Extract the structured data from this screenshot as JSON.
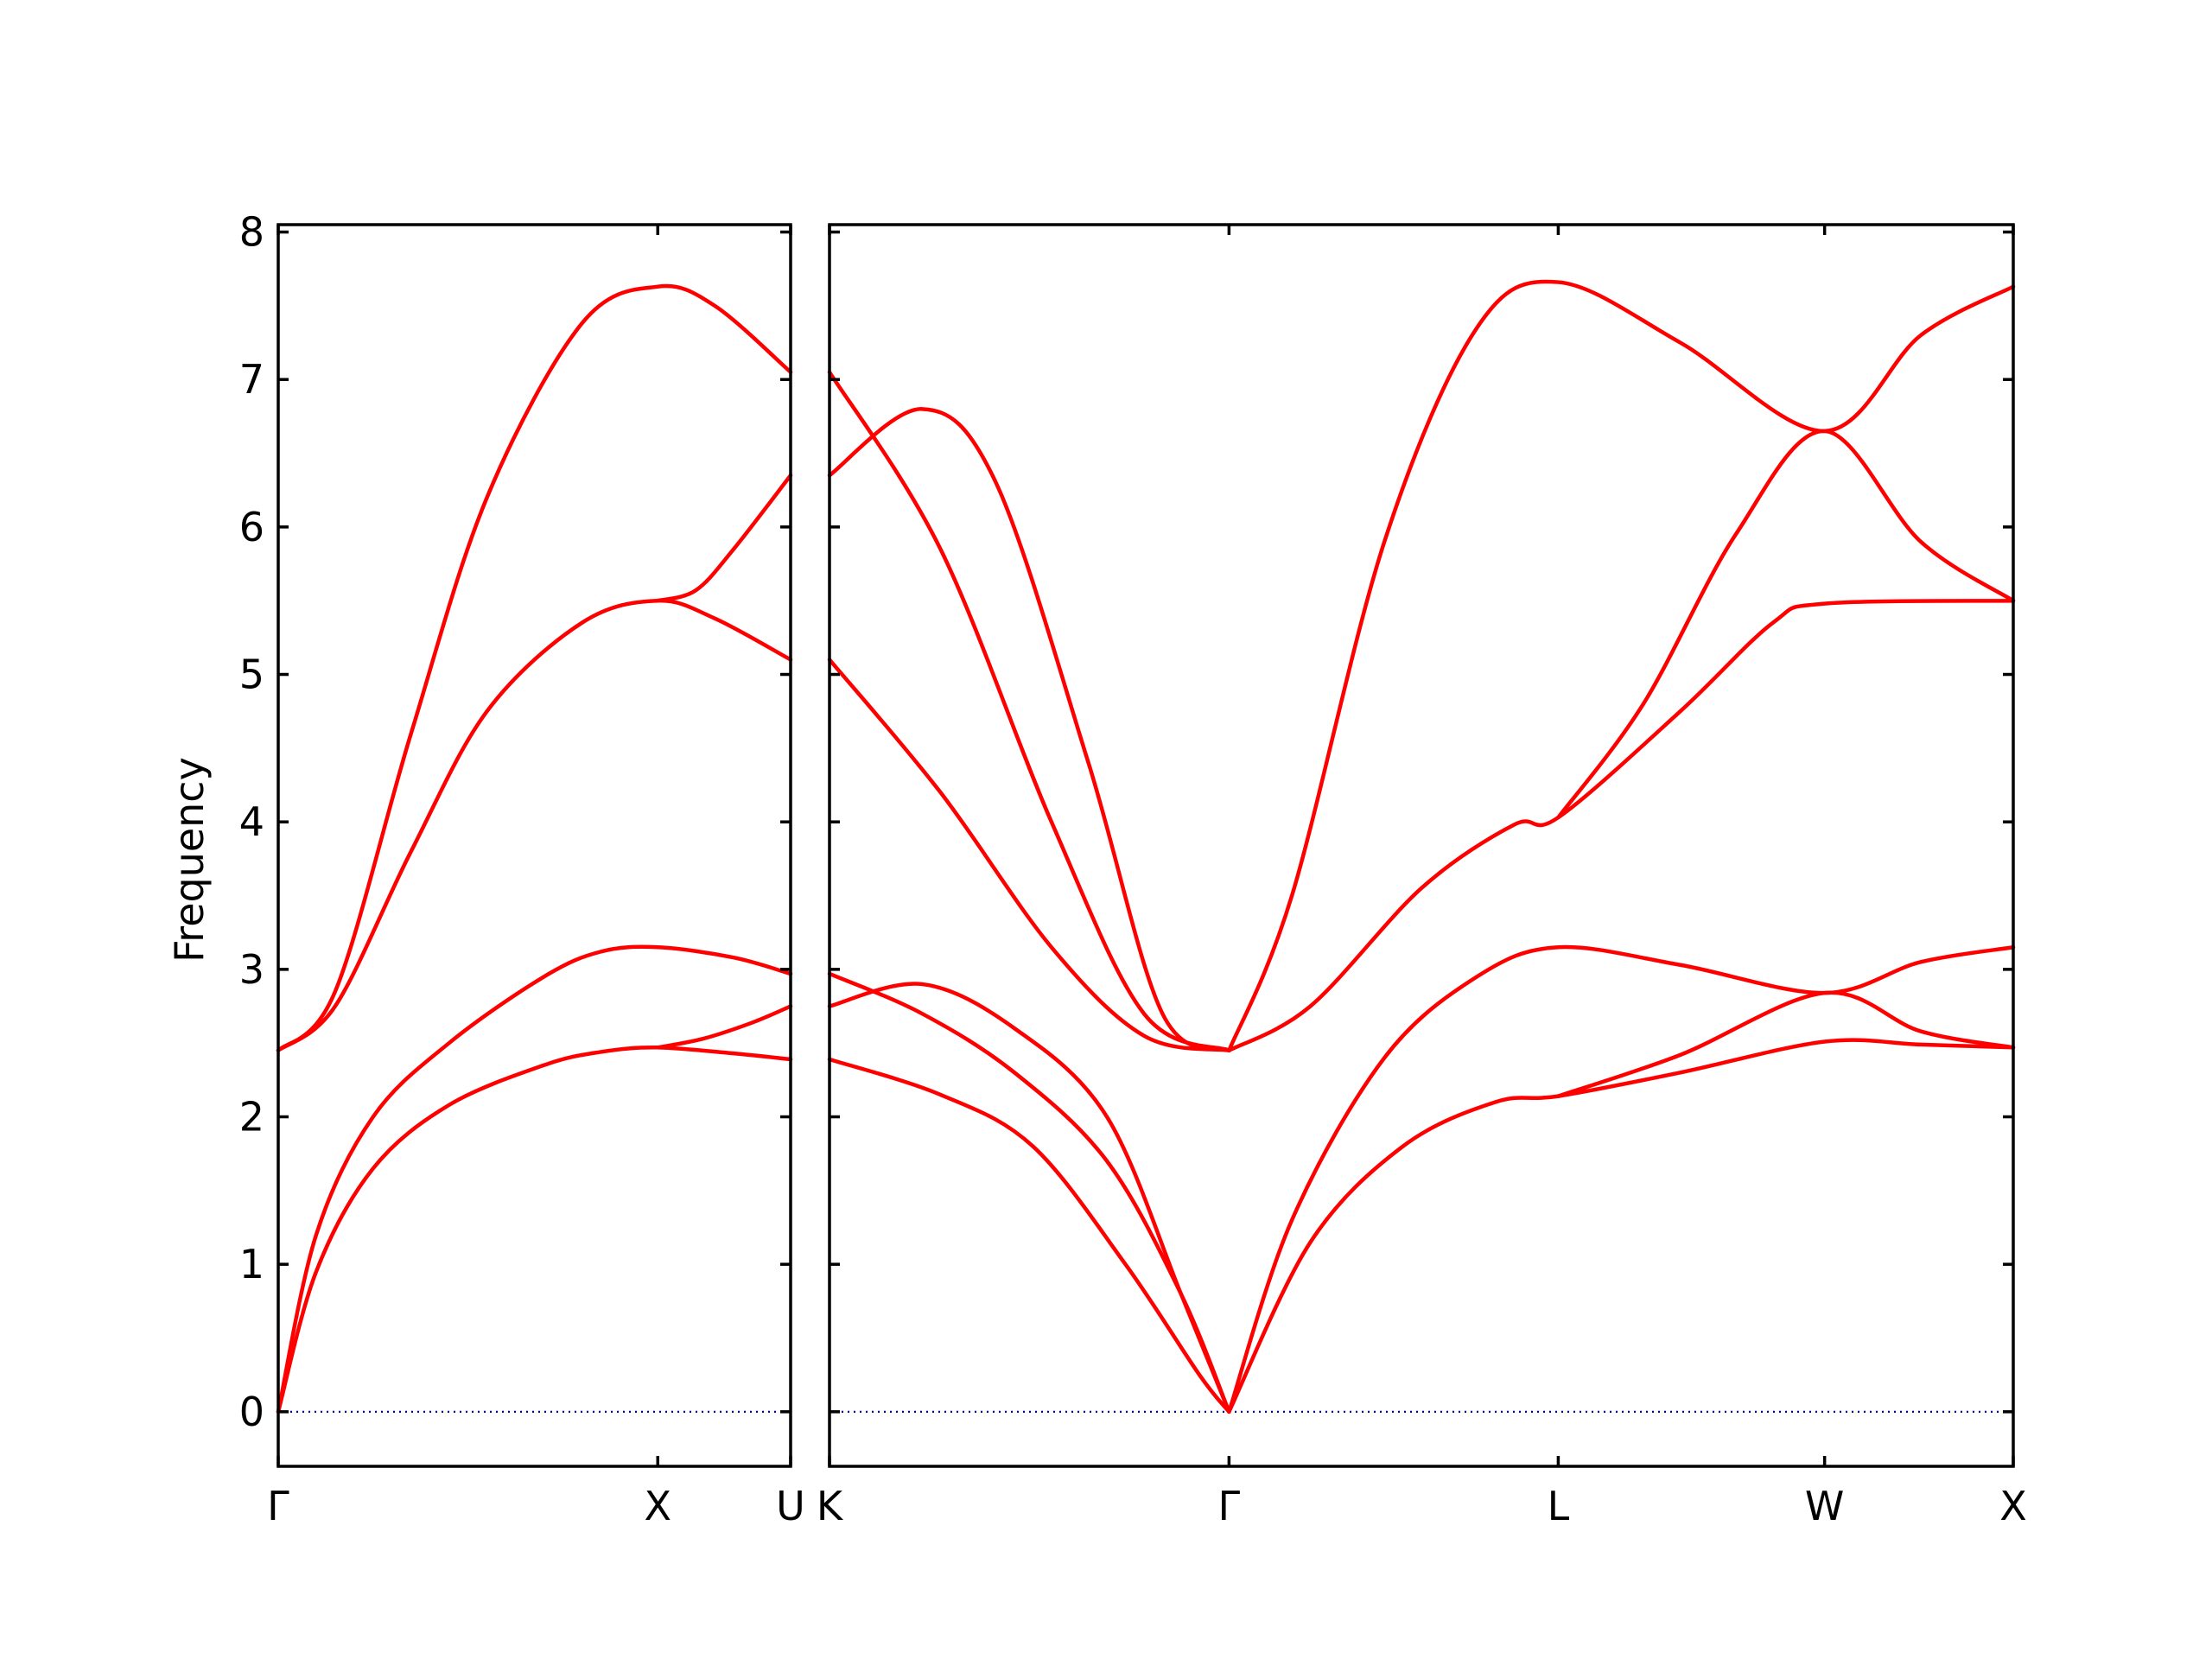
{
  "chart_data": {
    "type": "line",
    "title": "",
    "ylabel": "Frequency",
    "ylim": [
      -0.37,
      8.05
    ],
    "yticks": [
      "0",
      "1",
      "2",
      "3",
      "4",
      "5",
      "6",
      "7",
      "8"
    ],
    "grid": false,
    "legend": "none",
    "colors": {
      "bands": "#ff0000",
      "zero_line": "#0000aa"
    },
    "panels": [
      {
        "name": "left-panel",
        "xlim": [
          0,
          1.35
        ],
        "high_symmetry_points": [
          {
            "label": "Γ",
            "x": 0
          },
          {
            "label": "X",
            "x": 1.0
          },
          {
            "label": "U",
            "x": 1.35
          }
        ],
        "series": [
          {
            "points": [
              [
                0,
                0
              ],
              [
                0.1,
                1.2
              ],
              [
                0.25,
                2.0
              ],
              [
                0.45,
                2.5
              ],
              [
                0.7,
                2.95
              ],
              [
                0.85,
                3.12
              ],
              [
                1.0,
                3.15
              ],
              [
                1.2,
                3.08
              ],
              [
                1.35,
                2.97
              ]
            ]
          },
          {
            "points": [
              [
                0,
                0
              ],
              [
                0.1,
                0.95
              ],
              [
                0.25,
                1.65
              ],
              [
                0.45,
                2.08
              ],
              [
                0.7,
                2.35
              ],
              [
                0.85,
                2.44
              ],
              [
                1.0,
                2.47
              ],
              [
                1.2,
                2.43
              ],
              [
                1.35,
                2.39
              ]
            ]
          },
          {
            "points": [
              [
                0,
                2.45
              ],
              [
                0.15,
                2.75
              ],
              [
                0.35,
                3.8
              ],
              [
                0.55,
                4.75
              ],
              [
                0.8,
                5.35
              ],
              [
                1.0,
                5.5
              ],
              [
                1.15,
                5.38
              ],
              [
                1.35,
                5.1
              ]
            ]
          },
          {
            "points": [
              [
                0,
                2.45
              ],
              [
                0.15,
                2.85
              ],
              [
                0.35,
                4.6
              ],
              [
                0.55,
                6.2
              ],
              [
                0.8,
                7.38
              ],
              [
                1.0,
                7.63
              ],
              [
                1.15,
                7.5
              ],
              [
                1.35,
                7.05
              ]
            ]
          },
          {
            "points": [
              [
                1.0,
                2.47
              ],
              [
                1.12,
                2.53
              ],
              [
                1.25,
                2.64
              ],
              [
                1.35,
                2.75
              ]
            ]
          },
          {
            "points": [
              [
                1.0,
                5.5
              ],
              [
                1.1,
                5.57
              ],
              [
                1.2,
                5.85
              ],
              [
                1.35,
                6.35
              ]
            ]
          }
        ]
      },
      {
        "name": "right-panel",
        "xlim": [
          0,
          3.2
        ],
        "high_symmetry_points": [
          {
            "label": "K",
            "x": 0
          },
          {
            "label": "Γ",
            "x": 1.08
          },
          {
            "label": "L",
            "x": 1.97
          },
          {
            "label": "W",
            "x": 2.69
          },
          {
            "label": "X",
            "x": 3.2
          }
        ],
        "series": [
          {
            "points": [
              [
                0,
                2.97
              ],
              [
                0.25,
                2.7
              ],
              [
                0.5,
                2.3
              ],
              [
                0.75,
                1.7
              ],
              [
                0.95,
                0.8
              ],
              [
                1.08,
                0
              ]
            ]
          },
          {
            "points": [
              [
                0,
                2.39
              ],
              [
                0.3,
                2.15
              ],
              [
                0.55,
                1.8
              ],
              [
                0.8,
                1.0
              ],
              [
                1.0,
                0.25
              ],
              [
                1.08,
                0
              ]
            ]
          },
          {
            "points": [
              [
                0,
                2.75
              ],
              [
                0.25,
                2.9
              ],
              [
                0.5,
                2.6
              ],
              [
                0.75,
                2.0
              ],
              [
                0.95,
                0.8
              ],
              [
                1.08,
                0
              ]
            ]
          },
          {
            "points": [
              [
                0,
                5.1
              ],
              [
                0.3,
                4.2
              ],
              [
                0.6,
                3.15
              ],
              [
                0.85,
                2.55
              ],
              [
                1.08,
                2.45
              ]
            ]
          },
          {
            "points": [
              [
                0,
                7.05
              ],
              [
                0.3,
                5.85
              ],
              [
                0.6,
                4.0
              ],
              [
                0.85,
                2.7
              ],
              [
                1.08,
                2.45
              ]
            ]
          },
          {
            "points": [
              [
                0,
                6.35
              ],
              [
                0.25,
                6.8
              ],
              [
                0.45,
                6.3
              ],
              [
                0.7,
                4.4
              ],
              [
                0.9,
                2.7
              ],
              [
                1.08,
                2.45
              ]
            ]
          },
          {
            "points": [
              [
                1.08,
                0
              ],
              [
                1.25,
                1.3
              ],
              [
                1.5,
                2.4
              ],
              [
                1.75,
                2.95
              ],
              [
                1.97,
                3.15
              ],
              [
                2.3,
                3.03
              ],
              [
                2.69,
                2.84
              ],
              [
                2.95,
                3.05
              ],
              [
                3.2,
                3.15
              ]
            ]
          },
          {
            "points": [
              [
                1.08,
                0
              ],
              [
                1.3,
                1.15
              ],
              [
                1.55,
                1.8
              ],
              [
                1.8,
                2.1
              ],
              [
                1.97,
                2.14
              ],
              [
                2.3,
                2.3
              ],
              [
                2.69,
                2.51
              ],
              [
                2.95,
                2.49
              ],
              [
                3.2,
                2.47
              ]
            ]
          },
          {
            "points": [
              [
                1.08,
                2.45
              ],
              [
                1.3,
                2.75
              ],
              [
                1.6,
                3.55
              ],
              [
                1.85,
                3.98
              ],
              [
                1.97,
                4.03
              ],
              [
                2.3,
                4.75
              ],
              [
                2.55,
                5.35
              ],
              [
                2.69,
                5.48
              ],
              [
                3.2,
                5.5
              ]
            ]
          },
          {
            "points": [
              [
                1.08,
                2.45
              ],
              [
                1.25,
                3.5
              ],
              [
                1.5,
                5.9
              ],
              [
                1.75,
                7.35
              ],
              [
                1.97,
                7.66
              ],
              [
                2.3,
                7.25
              ],
              [
                2.69,
                6.65
              ],
              [
                2.95,
                7.3
              ],
              [
                3.2,
                7.63
              ]
            ]
          },
          {
            "points": [
              [
                1.97,
                2.14
              ],
              [
                2.3,
                2.42
              ],
              [
                2.69,
                2.84
              ],
              [
                2.95,
                2.58
              ],
              [
                3.2,
                2.47
              ]
            ]
          },
          {
            "points": [
              [
                1.97,
                4.03
              ],
              [
                2.2,
                4.8
              ],
              [
                2.45,
                5.95
              ],
              [
                2.69,
                6.65
              ],
              [
                2.95,
                5.9
              ],
              [
                3.2,
                5.5
              ]
            ]
          }
        ]
      }
    ]
  }
}
